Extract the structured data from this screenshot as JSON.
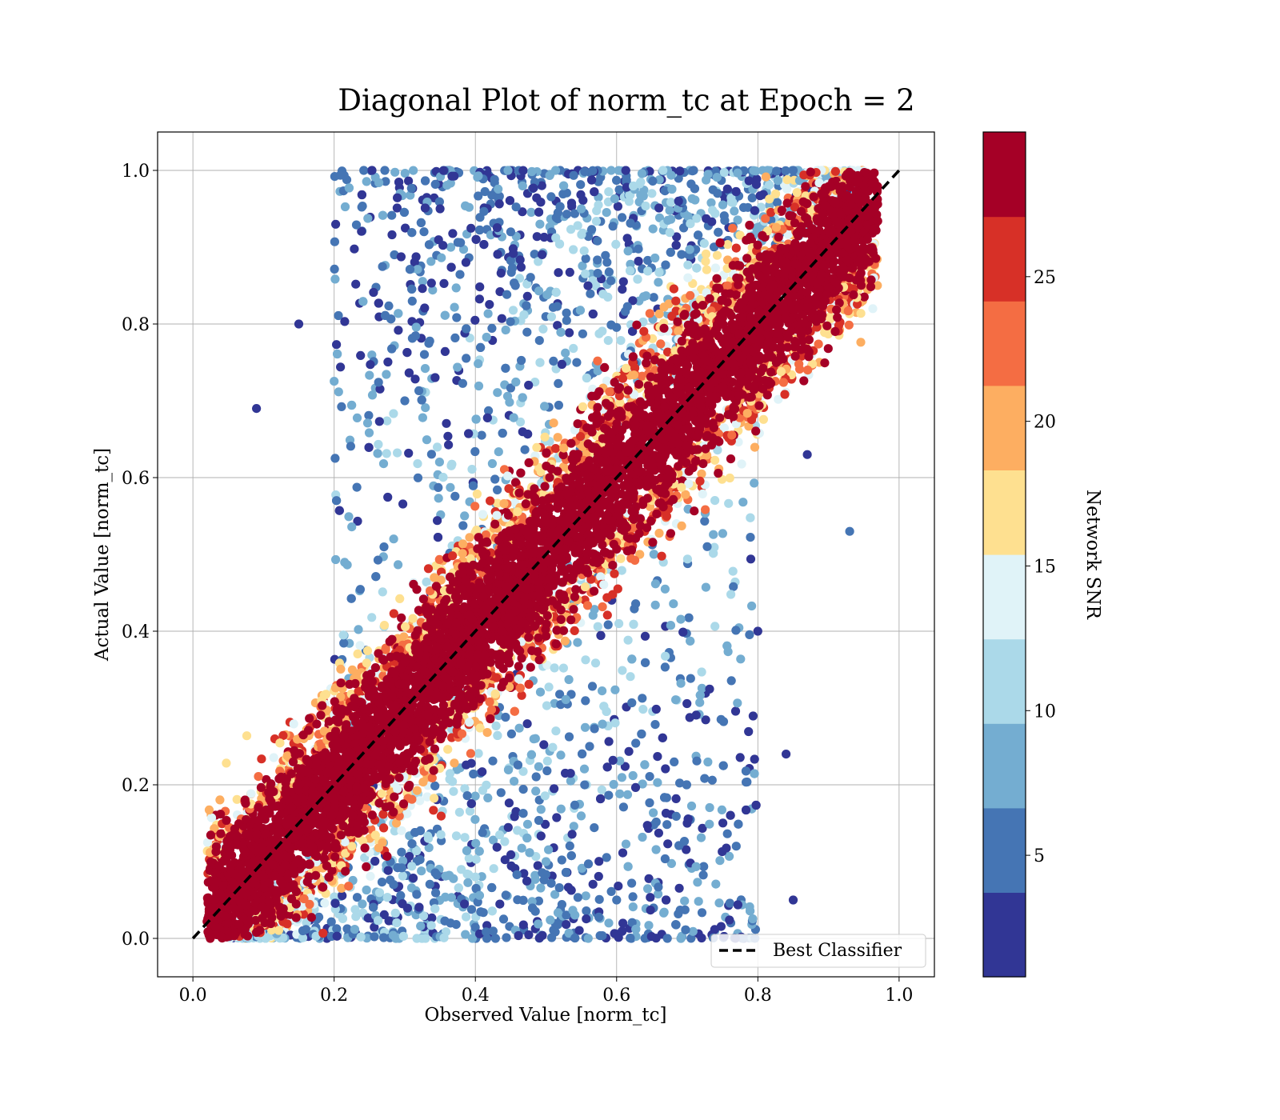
{
  "chart_data": {
    "type": "scatter",
    "title": "Diagonal Plot of norm_tc at Epoch = 2",
    "xlabel": "Observed Value [norm_tc]",
    "ylabel": "Actual Value [norm_tc]",
    "xlim": [
      -0.05,
      1.05
    ],
    "ylim": [
      -0.05,
      1.05
    ],
    "xticks": [
      0.0,
      0.2,
      0.4,
      0.6,
      0.8,
      1.0
    ],
    "yticks": [
      0.0,
      0.2,
      0.4,
      0.6,
      0.8,
      1.0
    ],
    "xtick_labels": [
      "0.0",
      "0.2",
      "0.4",
      "0.6",
      "0.8",
      "1.0"
    ],
    "ytick_labels": [
      "0.0",
      "0.2",
      "0.4",
      "0.6",
      "0.8",
      "1.0"
    ],
    "grid": true,
    "series": [
      {
        "name": "",
        "kind": "points",
        "description_values": "dense band of points around y = x colored by Network SNR; high SNR (~28) hugs the diagonal, low SNR (2-12) scatters away from it",
        "points_sample": [
          [
            0.05,
            0.02,
            28
          ],
          [
            0.1,
            0.08,
            28
          ],
          [
            0.2,
            0.18,
            28
          ],
          [
            0.3,
            0.31,
            28
          ],
          [
            0.4,
            0.4,
            28
          ],
          [
            0.5,
            0.49,
            28
          ],
          [
            0.6,
            0.61,
            28
          ],
          [
            0.7,
            0.7,
            28
          ],
          [
            0.8,
            0.79,
            28
          ],
          [
            0.9,
            0.92,
            28
          ],
          [
            0.95,
            0.98,
            28
          ],
          [
            0.35,
            0.95,
            3
          ],
          [
            0.45,
            0.92,
            6
          ],
          [
            0.55,
            0.95,
            8
          ],
          [
            0.65,
            0.97,
            11
          ],
          [
            0.6,
            0.05,
            5
          ],
          [
            0.5,
            0.1,
            8
          ],
          [
            0.4,
            0.08,
            11
          ],
          [
            0.7,
            0.15,
            3
          ],
          [
            0.3,
            0.7,
            5
          ],
          [
            0.8,
            0.4,
            3
          ],
          [
            0.09,
            0.69,
            2
          ],
          [
            0.93,
            0.53,
            5
          ],
          [
            0.87,
            0.63,
            2
          ],
          [
            0.85,
            0.05,
            2
          ],
          [
            0.84,
            0.24,
            2
          ],
          [
            0.15,
            0.8,
            2
          ]
        ]
      },
      {
        "name": "Best Classifier",
        "kind": "line",
        "style": "dashed",
        "color": "#000000",
        "x": [
          0.0,
          1.0
        ],
        "y": [
          0.0,
          1.0
        ]
      }
    ],
    "legend": {
      "placement": "lower-right",
      "entries": [
        "Best Classifier"
      ]
    },
    "colorbar": {
      "label": "Network SNR",
      "range": [
        0.8,
        30.0
      ],
      "ticks": [
        5,
        10,
        15,
        20,
        25
      ],
      "tick_labels": [
        "5",
        "10",
        "15",
        "20",
        "25"
      ],
      "colors": [
        "#313695",
        "#4575b4",
        "#74add1",
        "#abd9e9",
        "#e0f3f8",
        "#fee090",
        "#fdae61",
        "#f46d43",
        "#d73027",
        "#a50026"
      ]
    }
  }
}
